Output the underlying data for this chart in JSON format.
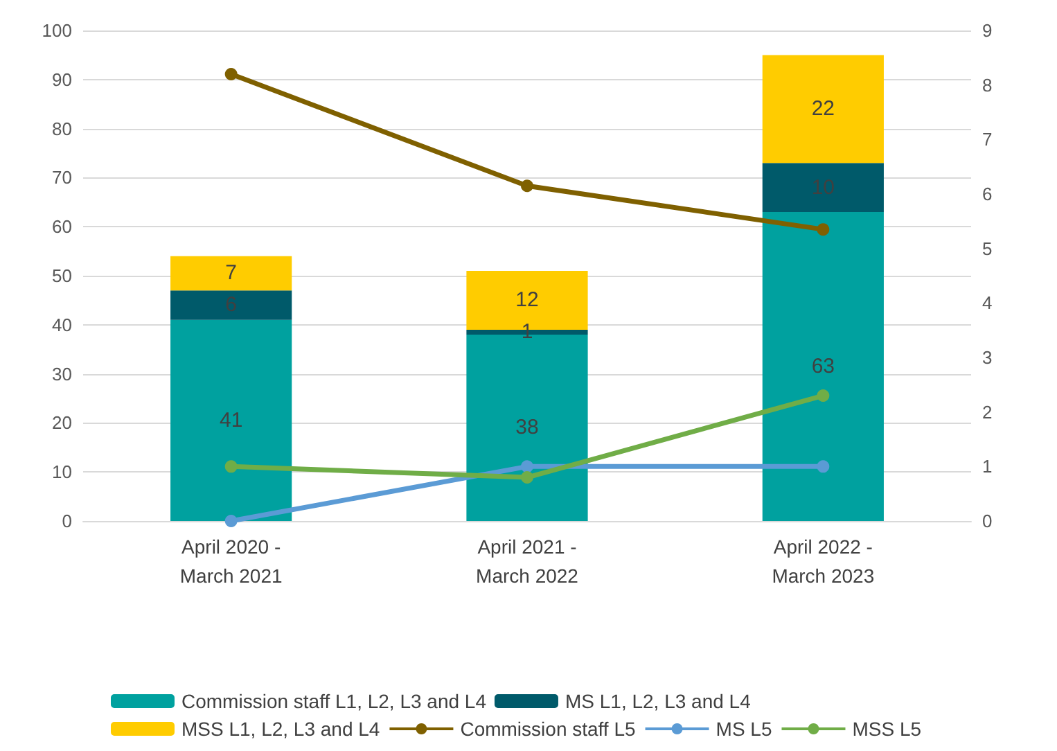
{
  "chart_data": {
    "type": "bar",
    "stacked": true,
    "categories": [
      "April 2020 -\nMarch 2021",
      "April 2021 -\nMarch 2022",
      "April 2022 -\nMarch 2023"
    ],
    "series": [
      {
        "name": "Commission staff L1, L2, L3 and L4",
        "color": "#00a19f",
        "values": [
          41,
          38,
          63
        ],
        "value_labels": [
          "41",
          "38",
          "63"
        ]
      },
      {
        "name": "MS L1, L2, L3 and L4",
        "color": "#005a6a",
        "values": [
          6,
          1,
          10
        ],
        "value_labels": [
          "6",
          "1",
          "10"
        ]
      },
      {
        "name": "MSS L1, L2, L3 and L4",
        "color": "#ffcc00",
        "values": [
          7,
          12,
          22
        ],
        "value_labels": [
          "7",
          "12",
          "22"
        ]
      },
      {
        "name": "Commission staff L5",
        "type": "line",
        "axis": "y2",
        "color": "#7f6000",
        "values": [
          8.2,
          6.15,
          5.35
        ]
      },
      {
        "name": "MS L5",
        "type": "line",
        "axis": "y2",
        "color": "#5b9bd5",
        "values": [
          0,
          1,
          1
        ]
      },
      {
        "name": "MSS L5",
        "type": "line",
        "axis": "y2",
        "color": "#70ad47",
        "values": [
          1,
          0.8,
          2.3
        ]
      }
    ],
    "ylim": [
      0,
      100
    ],
    "yticks": [
      0,
      10,
      20,
      30,
      40,
      50,
      60,
      70,
      80,
      90,
      100
    ],
    "y2lim": [
      0,
      9
    ],
    "y2ticks": [
      0,
      1,
      2,
      3,
      4,
      5,
      6,
      7,
      8,
      9
    ],
    "grid": "y",
    "legend": "bottom",
    "marker": "circle",
    "line_style": "solid"
  }
}
